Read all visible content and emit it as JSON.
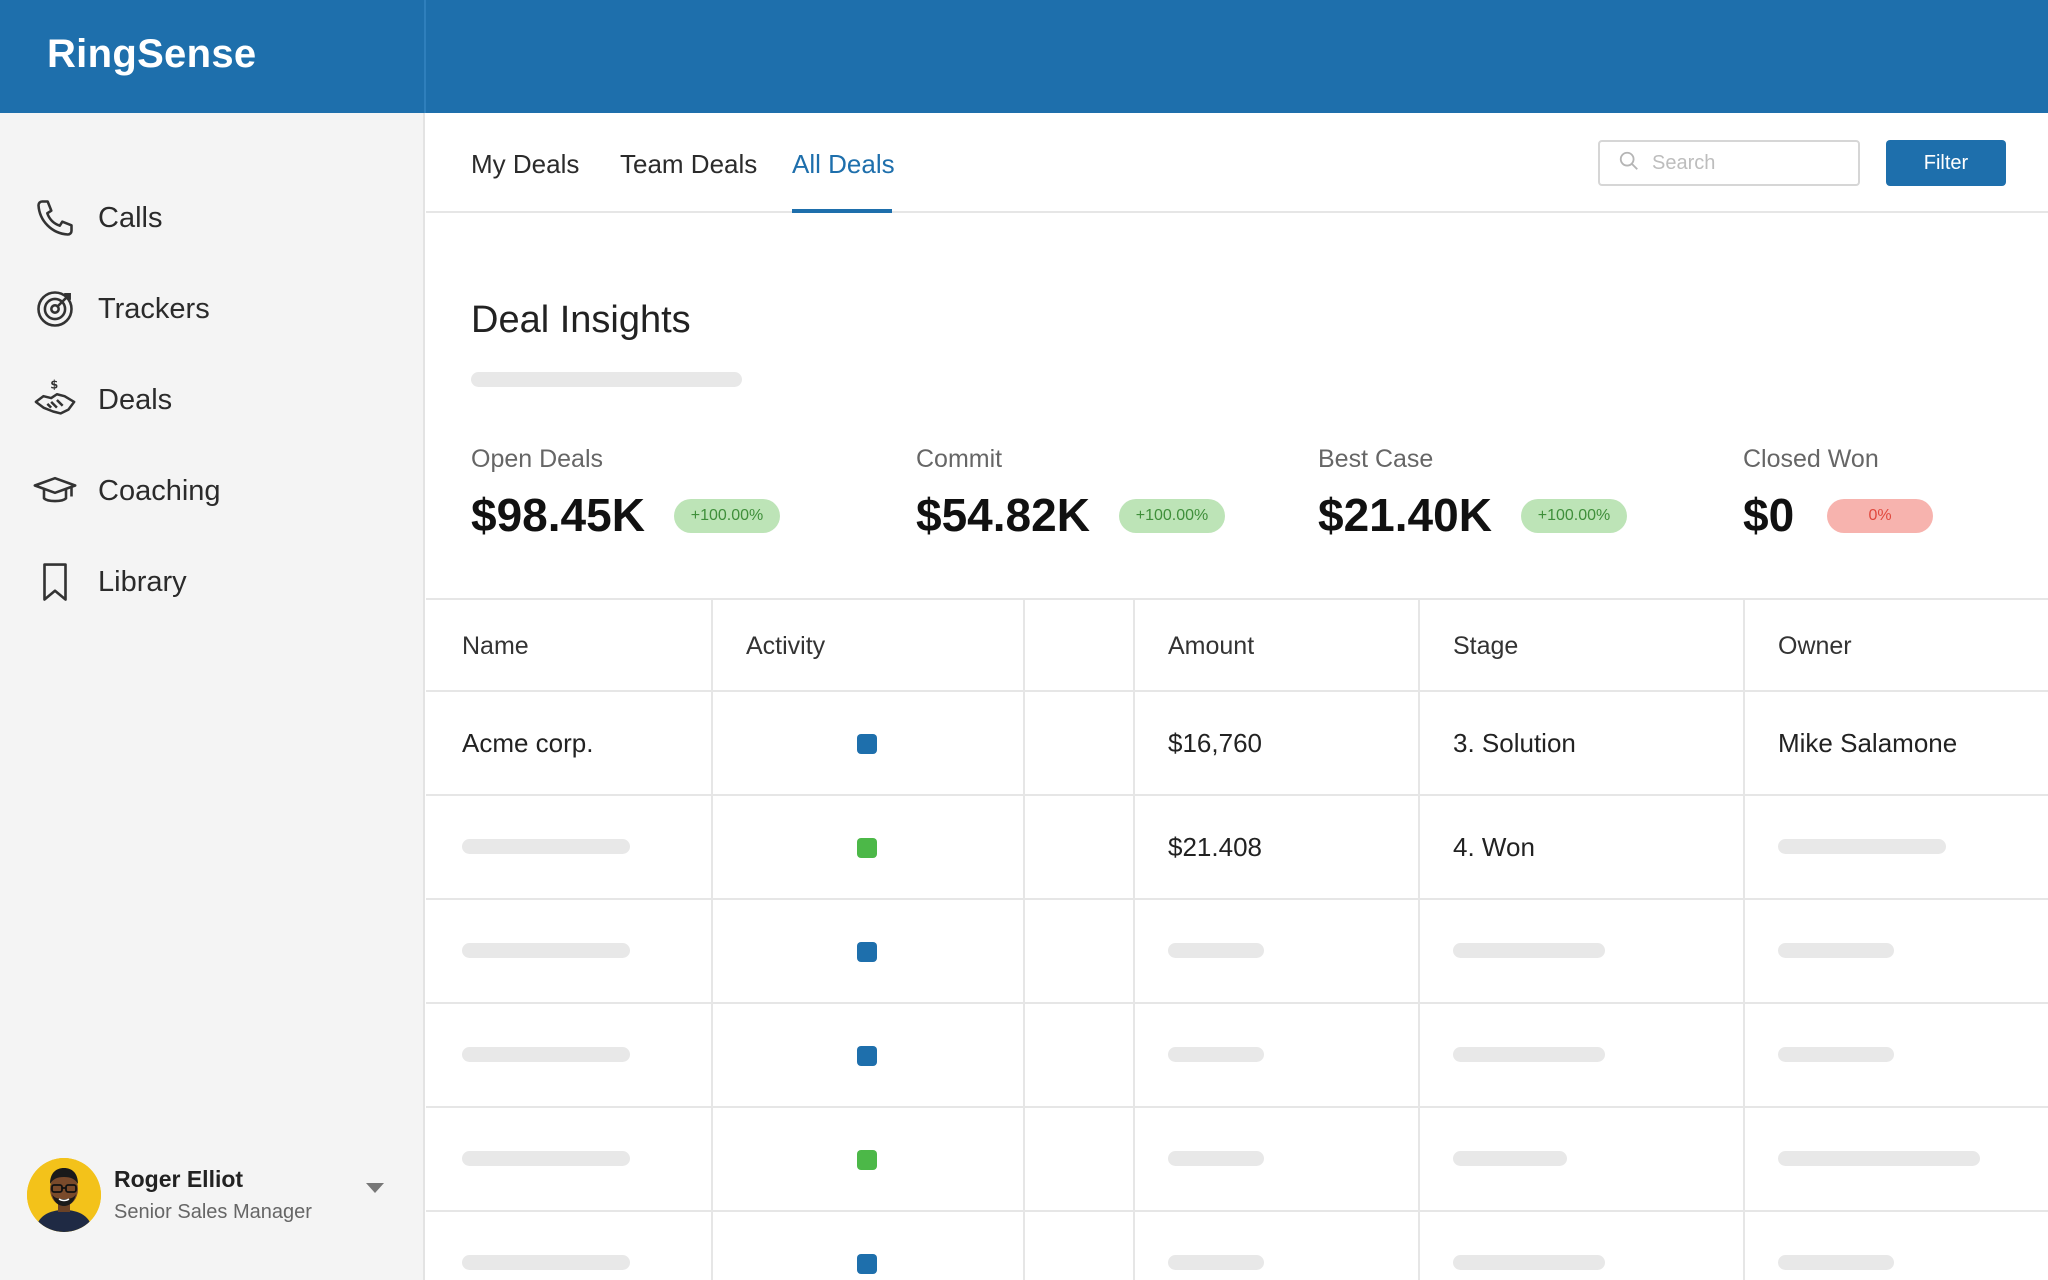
{
  "app": {
    "brand": "RingSense"
  },
  "sidebar": {
    "items": [
      {
        "label": "Calls",
        "icon": "phone-icon"
      },
      {
        "label": "Trackers",
        "icon": "target-icon"
      },
      {
        "label": "Deals",
        "icon": "handshake-dollar-icon"
      },
      {
        "label": "Coaching",
        "icon": "graduation-cap-icon"
      },
      {
        "label": "Library",
        "icon": "bookmark-icon"
      }
    ],
    "user": {
      "name": "Roger Elliot",
      "role": "Senior Sales Manager"
    }
  },
  "tabs": [
    {
      "label": "My Deals",
      "active": false
    },
    {
      "label": "Team Deals",
      "active": false
    },
    {
      "label": "All Deals",
      "active": true
    }
  ],
  "search": {
    "placeholder": "Search",
    "value": ""
  },
  "filter_label": "Filter",
  "insights": {
    "title": "Deal Insights",
    "metrics": [
      {
        "label": "Open Deals",
        "value": "$98.45K",
        "change": "+100.00%",
        "trend": "up"
      },
      {
        "label": "Commit",
        "value": "$54.82K",
        "change": "+100.00%",
        "trend": "up"
      },
      {
        "label": "Best Case",
        "value": "$21.40K",
        "change": "+100.00%",
        "trend": "up"
      },
      {
        "label": "Closed Won",
        "value": "$0",
        "change": "0%",
        "trend": "down"
      }
    ]
  },
  "table": {
    "headers": [
      "Name",
      "Activity",
      "",
      "Amount",
      "Stage",
      "Owner"
    ],
    "rows": [
      {
        "name": "Acme corp.",
        "activity": "blue",
        "amount": "$16,760",
        "stage": "3. Solution",
        "owner": "Mike Salamone"
      },
      {
        "name": "",
        "activity": "green",
        "amount": "$21.408",
        "stage": "4. Won",
        "owner": ""
      },
      {
        "name": "",
        "activity": "blue",
        "amount": "",
        "stage": "",
        "owner": ""
      },
      {
        "name": "",
        "activity": "blue",
        "amount": "",
        "stage": "",
        "owner": ""
      },
      {
        "name": "",
        "activity": "green",
        "amount": "",
        "stage": "",
        "owner": ""
      },
      {
        "name": "",
        "activity": "blue",
        "amount": "",
        "stage": "",
        "owner": ""
      }
    ]
  },
  "colors": {
    "primary": "#1e6fac",
    "activity_blue": "#1e6fac",
    "activity_green": "#4cb848",
    "badge_up_bg": "#bde4b7",
    "badge_down_bg": "#f7b3ae"
  }
}
